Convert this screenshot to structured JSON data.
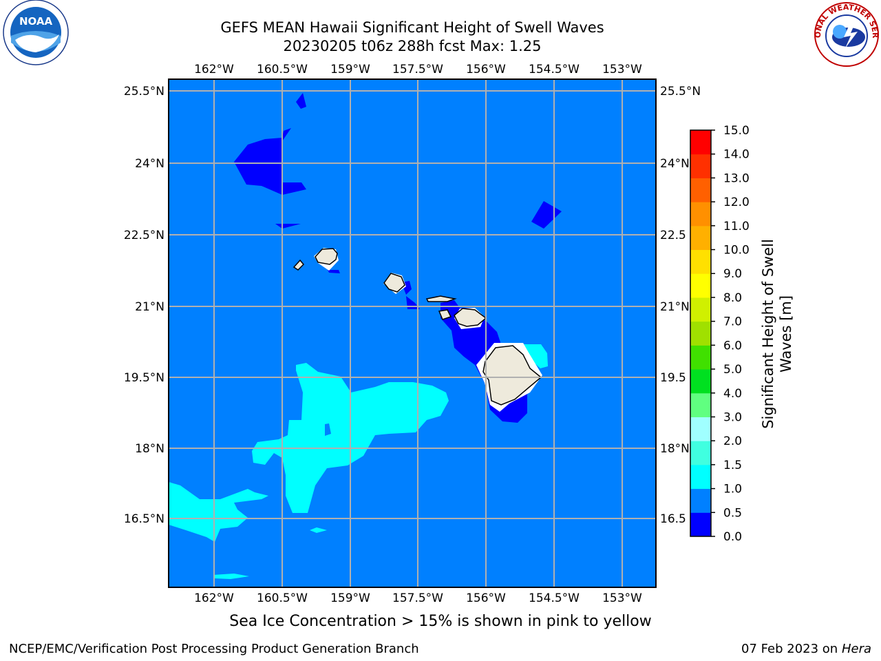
{
  "header": {
    "title_line1": "GEFS MEAN Hawaii Significant Height of Swell Waves",
    "title_line2": "20230205 t06z 288h fcst   Max: 1.25"
  },
  "logos": {
    "noaa": {
      "icon": "noaa-logo-icon",
      "text": "NOAA"
    },
    "nws": {
      "icon": "nws-logo-icon",
      "text": "NATIONAL WEATHER SERVICE"
    }
  },
  "map": {
    "lon_ticks": [
      "162°W",
      "160.5°W",
      "159°W",
      "157.5°W",
      "156°W",
      "154.5°W",
      "153°W"
    ],
    "lat_ticks": [
      "25.5°N",
      "24°N",
      "22.5°N",
      "21°N",
      "19.5°N",
      "18°N",
      "16.5°N"
    ],
    "lat_ticks_right": [
      "25.5°N",
      "24°N",
      "22.5",
      "21°N",
      "19.5",
      "18°N",
      "16.5"
    ],
    "colors": {
      "ocean": "#0080ff",
      "dark_band": "#0000ff",
      "light_band": "#00ffff",
      "land": "#eeeadc",
      "grid": "#b0b0b0"
    }
  },
  "colorbar": {
    "label_line1": "Significant Height of Swell",
    "label_line2": "Waves [m]",
    "levels": [
      "0.0",
      "0.5",
      "1.0",
      "1.5",
      "2.0",
      "3.0",
      "4.0",
      "5.0",
      "6.0",
      "7.0",
      "8.0",
      "9.0",
      "10.0",
      "11.0",
      "12.0",
      "13.0",
      "14.0",
      "15.0"
    ],
    "colors": [
      "#0000ff",
      "#0080ff",
      "#00ffff",
      "#40ffe0",
      "#a0ffff",
      "#60ff80",
      "#00e020",
      "#40e000",
      "#a0e000",
      "#d0f000",
      "#ffff00",
      "#ffe000",
      "#ffb000",
      "#ff9000",
      "#ff6000",
      "#ff3000",
      "#ff0000"
    ]
  },
  "note": "Sea Ice Concentration > 15% is shown in pink to yellow",
  "footer": {
    "left": "NCEP/EMC/Verification Post Processing Product Generation Branch",
    "date": "07 Feb 2023 on",
    "machine": "Hera"
  }
}
